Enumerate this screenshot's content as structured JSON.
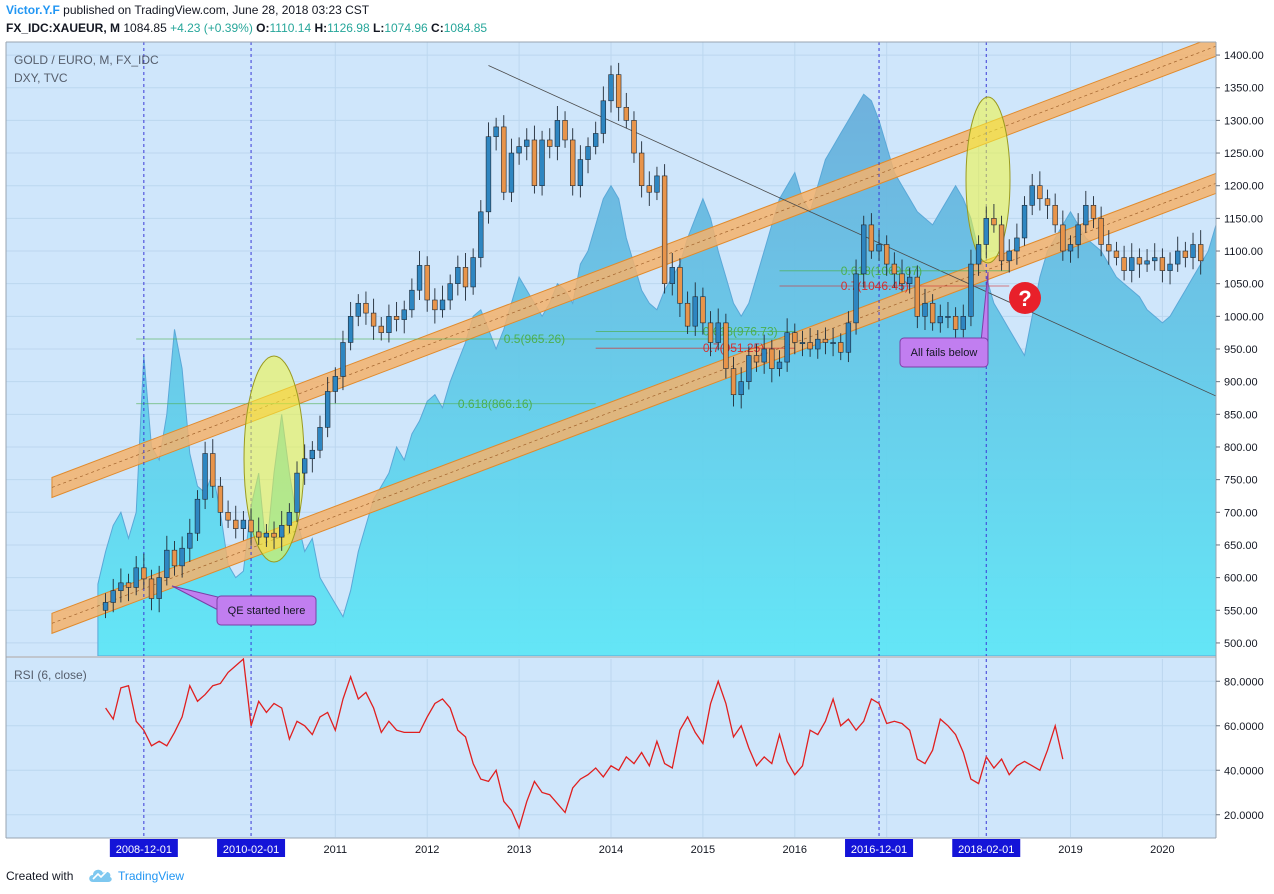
{
  "header": {
    "author": "Victor.Y.F",
    "published_text": "published on TradingView.com, June 28, 2018 03:23 CST",
    "symbol": "FX_IDC:XAUEUR, M",
    "last": "1084.85",
    "change": "+4.23 (+0.39%)",
    "open_label": "O:",
    "open": "1110.14",
    "high_label": "H:",
    "high": "1126.98",
    "low_label": "L:",
    "low": "1074.96",
    "close_label": "C:",
    "close": "1084.85"
  },
  "main_pane": {
    "title": "GOLD / EURO, M, FX_IDC",
    "subtitle": "DXY, TVC"
  },
  "rsi_pane": {
    "title": "RSI (6, close)"
  },
  "footer": {
    "created_with": "Created with",
    "brand": "TradingView"
  },
  "colors": {
    "up": "#2e86c1",
    "down": "#e8944a",
    "channel_fill": "#f4b26b",
    "rsi_line": "#e01f1f",
    "dxy_top": "#6aaedb",
    "dxy_bottom": "#5ee6f6",
    "pane_bg": "#cfe6fb",
    "fib_green": "#4caf50",
    "fib_red": "#d32f2f",
    "callout": "#c17ef0",
    "highlight": "#f2f53a",
    "date_flag": "#1414d8"
  },
  "chart_data": [
    {
      "type": "candlestick",
      "title": "GOLD / EURO, M, FX_IDC",
      "x_start": "2008-07",
      "x_range": [
        "2007-06",
        "2020-08"
      ],
      "ylim": [
        480,
        1420
      ],
      "y_ticks": [
        500,
        550,
        600,
        650,
        700,
        750,
        800,
        850,
        900,
        950,
        1000,
        1050,
        1100,
        1150,
        1200,
        1250,
        1300,
        1350,
        1400
      ],
      "x_ticks": [
        "2011",
        "2012",
        "2013",
        "2014",
        "2015",
        "2016",
        "2017",
        "2018",
        "2019",
        "2020"
      ],
      "date_flags": [
        "2008-12-01",
        "2010-02-01",
        "2016-12-01",
        "2018-02-01"
      ],
      "close": [
        562,
        580,
        592,
        585,
        615,
        598,
        568,
        600,
        642,
        618,
        645,
        668,
        720,
        790,
        740,
        700,
        688,
        675,
        688,
        670,
        662,
        668,
        662,
        680,
        700,
        760,
        782,
        795,
        830,
        885,
        908,
        960,
        1000,
        1020,
        1005,
        985,
        975,
        1000,
        995,
        1010,
        1040,
        1078,
        1025,
        1010,
        1025,
        1050,
        1075,
        1045,
        1090,
        1160,
        1275,
        1290,
        1190,
        1250,
        1260,
        1270,
        1200,
        1270,
        1260,
        1300,
        1270,
        1200,
        1240,
        1260,
        1280,
        1330,
        1370,
        1320,
        1300,
        1250,
        1200,
        1190,
        1215,
        1050,
        1075,
        1020,
        985,
        1030,
        990,
        960,
        990,
        920,
        880,
        900,
        940,
        930,
        950,
        920,
        930,
        975,
        960,
        960,
        950,
        965,
        960,
        960,
        945,
        990,
        1065,
        1140,
        1100,
        1110,
        1080,
        1065,
        1050,
        1060,
        1000,
        1020,
        990,
        1000,
        1000,
        980,
        1000,
        1080,
        1110,
        1150,
        1140,
        1085,
        1100,
        1120,
        1170,
        1200,
        1180,
        1170,
        1140,
        1100,
        1110,
        1140,
        1170,
        1150,
        1110,
        1100,
        1090,
        1070,
        1090,
        1080,
        1085,
        1090,
        1070,
        1080,
        1100,
        1090,
        1110,
        1085
      ],
      "rsi": {
        "name": "RSI (6, close)",
        "ylim": [
          10,
          90
        ],
        "y_ticks": [
          20,
          40,
          60,
          80
        ],
        "values": [
          68,
          63,
          77,
          78,
          62,
          58,
          51,
          53,
          51,
          57,
          64,
          78,
          71,
          74,
          78,
          79,
          84,
          87,
          90,
          60,
          71,
          66,
          70,
          68,
          54,
          62,
          60,
          56,
          64,
          66,
          58,
          72,
          82,
          72,
          75,
          68,
          57,
          62,
          58,
          57,
          57,
          57,
          64,
          70,
          72,
          68,
          58,
          55,
          43,
          36,
          35,
          40,
          26,
          22,
          14,
          26,
          35,
          30,
          29,
          25,
          21,
          32,
          36,
          38,
          41,
          37,
          42,
          40,
          46,
          43,
          48,
          42,
          53,
          43,
          41,
          58,
          64,
          57,
          52,
          70,
          80,
          70,
          55,
          60,
          50,
          42,
          46,
          43,
          56,
          44,
          38,
          42,
          58,
          56,
          62,
          72,
          60,
          63,
          58,
          62,
          72,
          70,
          61,
          62,
          61,
          58,
          45,
          43,
          49,
          63,
          60,
          56,
          48,
          36,
          34,
          46,
          41,
          45,
          38,
          42,
          44,
          42,
          40,
          49,
          60,
          45
        ]
      },
      "overlay_series": {
        "name": "DXY, TVC",
        "values": [
          590,
          640,
          680,
          700,
          660,
          700,
          940,
          800,
          780,
          850,
          980,
          920,
          790,
          740,
          730,
          760,
          700,
          620,
          600,
          610,
          710,
          760,
          640,
          760,
          850,
          760,
          690,
          640,
          660,
          600,
          580,
          560,
          540,
          580,
          640,
          680,
          720,
          740,
          760,
          800,
          780,
          820,
          840,
          870,
          880,
          860,
          900,
          930,
          960,
          1000,
          1010,
          980,
          950,
          980,
          1020,
          1060,
          1040,
          1020,
          1000,
          1020,
          1050,
          1040,
          1020,
          1080,
          1100,
          1140,
          1180,
          1200,
          1180,
          1120,
          1080,
          1040,
          1020,
          1010,
          1040,
          1060,
          1080,
          1120,
          1150,
          1180,
          1150,
          1100,
          1060,
          1020,
          1000,
          1020,
          1060,
          1100,
          1140,
          1180,
          1200,
          1220,
          1180,
          1160,
          1200,
          1240,
          1260,
          1280,
          1300,
          1320,
          1340,
          1330,
          1300,
          1260,
          1220,
          1200,
          1180,
          1160,
          1150,
          1140,
          1160,
          1180,
          1200,
          1180,
          1150,
          1100,
          1060,
          1020,
          1000,
          980,
          960,
          940,
          1000,
          1060,
          1100,
          1120,
          1140,
          1160,
          1140,
          1120,
          1110,
          1100,
          1080,
          1060,
          1050,
          1040,
          1030,
          1010,
          1000,
          990,
          1000,
          1020,
          1040,
          1060,
          1080,
          1100,
          1140,
          1160
        ]
      },
      "fib_levels": [
        {
          "label": "0.5(965.26)",
          "value": 965.26,
          "color": "green"
        },
        {
          "label": "0.618(866.16)",
          "value": 866.16,
          "color": "green"
        },
        {
          "label": "0.618(976.73)",
          "value": 976.73,
          "color": "green"
        },
        {
          "label": "0.7(951.25)",
          "value": 951.25,
          "color": "red"
        },
        {
          "label": "0.618(1069.67)",
          "value": 1069.67,
          "color": "green"
        },
        {
          "label": "0.7(1046.45)",
          "value": 1046.45,
          "color": "red"
        }
      ],
      "annotations": [
        {
          "label": "QE started here"
        },
        {
          "label": "All fails below"
        },
        {
          "label": "?"
        }
      ],
      "channels": [
        {
          "name": "upper",
          "from": [
            "2007-12",
            738
          ],
          "to": [
            "2020-09",
            1418
          ]
        },
        {
          "name": "lower",
          "from": [
            "2007-12",
            530
          ],
          "to": [
            "2020-09",
            1208
          ]
        }
      ],
      "trendline": {
        "from": [
          "2012-09",
          1384
        ],
        "to": [
          "2020-08",
          878
        ]
      }
    }
  ]
}
